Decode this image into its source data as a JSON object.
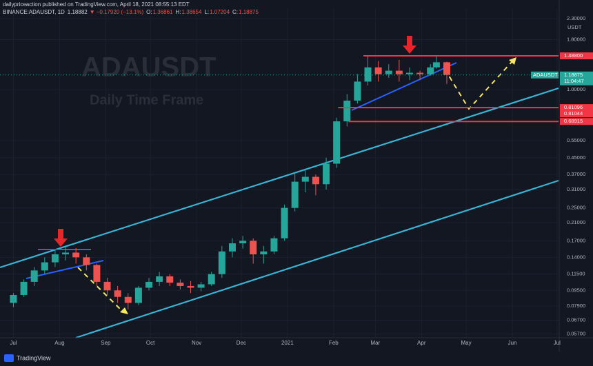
{
  "chart_data": {
    "type": "candlestick",
    "publisher_line": "dailypriceaction published on TradingView.com, April 18, 2021 08:55:13 EDT",
    "title": "BINANCE:ADAUSDT, 1D",
    "last": 1.18882,
    "change_arrow": "▼",
    "change": "−0.17920 (−13.1%)",
    "ohlc": [
      {
        "label": "O:",
        "value": 1.36861
      },
      {
        "label": "H:",
        "value": 1.38654
      },
      {
        "label": "L:",
        "value": 1.07204
      },
      {
        "label": "C:",
        "value": 1.18875
      }
    ],
    "watermark": "ADAUSDT",
    "subtitle": "Daily Time Frame",
    "currency": "USDT",
    "price_tag": {
      "symbol": "ADAUSDT",
      "value": 1.18875,
      "timer": "11:04:47"
    },
    "brand": "TradingView",
    "log_scale": true,
    "grid": true,
    "up_color": "#26a69a",
    "down_color": "#ef5350",
    "x": [
      0,
      7,
      14,
      21,
      28,
      35,
      42,
      49,
      56,
      63,
      70,
      77,
      84,
      91,
      98,
      105,
      112,
      119,
      126,
      133,
      140,
      147,
      154,
      161,
      168,
      175,
      182,
      189,
      196,
      203,
      210,
      217,
      224,
      231,
      238,
      245,
      252,
      259,
      266,
      273,
      280,
      284,
      291
    ],
    "open": [
      0.082,
      0.09,
      0.105,
      0.12,
      0.132,
      0.145,
      0.148,
      0.14,
      0.128,
      0.105,
      0.095,
      0.088,
      0.082,
      0.098,
      0.105,
      0.112,
      0.104,
      0.1,
      0.098,
      0.102,
      0.115,
      0.15,
      0.165,
      0.17,
      0.145,
      0.15,
      0.175,
      0.25,
      0.34,
      0.36,
      0.33,
      0.42,
      0.69,
      0.88,
      1.1,
      1.3,
      1.2,
      1.25,
      1.2,
      1.22,
      1.2,
      1.3,
      1.38
    ],
    "high": [
      0.092,
      0.108,
      0.125,
      0.14,
      0.152,
      0.158,
      0.156,
      0.145,
      0.13,
      0.11,
      0.1,
      0.092,
      0.1,
      0.11,
      0.118,
      0.115,
      0.108,
      0.106,
      0.105,
      0.118,
      0.16,
      0.175,
      0.18,
      0.175,
      0.16,
      0.18,
      0.26,
      0.38,
      0.39,
      0.37,
      0.45,
      0.72,
      0.95,
      1.2,
      1.48,
      1.4,
      1.35,
      1.42,
      1.3,
      1.25,
      1.35,
      1.5,
      1.39
    ],
    "low": [
      0.078,
      0.088,
      0.1,
      0.115,
      0.125,
      0.135,
      0.13,
      0.12,
      0.1,
      0.09,
      0.082,
      0.076,
      0.08,
      0.095,
      0.1,
      0.1,
      0.096,
      0.092,
      0.094,
      0.1,
      0.11,
      0.14,
      0.155,
      0.13,
      0.13,
      0.145,
      0.17,
      0.24,
      0.3,
      0.29,
      0.31,
      0.4,
      0.65,
      0.85,
      1.05,
      1.1,
      1.15,
      1.1,
      1.12,
      1.12,
      1.18,
      1.28,
      1.07
    ],
    "close": [
      0.09,
      0.105,
      0.12,
      0.132,
      0.145,
      0.148,
      0.14,
      0.128,
      0.105,
      0.095,
      0.088,
      0.082,
      0.098,
      0.105,
      0.112,
      0.104,
      0.1,
      0.098,
      0.102,
      0.115,
      0.15,
      0.165,
      0.17,
      0.145,
      0.15,
      0.175,
      0.25,
      0.34,
      0.36,
      0.33,
      0.42,
      0.69,
      0.88,
      1.1,
      1.3,
      1.2,
      1.25,
      1.2,
      1.22,
      1.2,
      1.3,
      1.38,
      1.19
    ],
    "levels": [
      {
        "value": 1.488,
        "label": "1.48800",
        "start": 235
      },
      {
        "value": 0.81096,
        "label": "0.81096",
        "start": 218
      },
      {
        "value": 0.81044,
        "label": "0.81044",
        "start": 218
      },
      {
        "value": 0.68915,
        "label": "0.68915",
        "start": 225
      }
    ],
    "xlim": [
      -9,
      366
    ],
    "xticks": [
      {
        "value": 0,
        "label": "Jul"
      },
      {
        "value": 31,
        "label": "Aug"
      },
      {
        "value": 62,
        "label": "Sep"
      },
      {
        "value": 92,
        "label": "Oct"
      },
      {
        "value": 123,
        "label": "Nov"
      },
      {
        "value": 153,
        "label": "Dec"
      },
      {
        "value": 184,
        "label": "2021"
      },
      {
        "value": 215,
        "label": "Feb"
      },
      {
        "value": 243,
        "label": "Mar"
      },
      {
        "value": 274,
        "label": "Apr"
      },
      {
        "value": 304,
        "label": "May"
      },
      {
        "value": 335,
        "label": "Jun"
      },
      {
        "value": 365,
        "label": "Jul"
      }
    ],
    "ylim": [
      0.0545,
      2.6
    ],
    "yticks": [
      {
        "value": 2.3,
        "label": "2.30000"
      },
      {
        "value": 1.8,
        "label": "1.80000"
      },
      {
        "value": 1,
        "label": "1.00000"
      },
      {
        "value": 0.55,
        "label": "0.55000"
      },
      {
        "value": 0.45,
        "label": "0.45000"
      },
      {
        "value": 0.37,
        "label": "0.37000"
      },
      {
        "value": 0.31,
        "label": "0.31000"
      },
      {
        "value": 0.25,
        "label": "0.25000"
      },
      {
        "value": 0.21,
        "label": "0.21000"
      },
      {
        "value": 0.17,
        "label": "0.17000"
      },
      {
        "value": 0.14,
        "label": "0.14000"
      },
      {
        "value": 0.115,
        "label": "0.11500"
      },
      {
        "value": 0.095,
        "label": "0.09500"
      },
      {
        "value": 0.079,
        "label": "0.07900"
      },
      {
        "value": 0.067,
        "label": "0.06700"
      },
      {
        "value": 0.057,
        "label": "0.05700"
      }
    ]
  }
}
